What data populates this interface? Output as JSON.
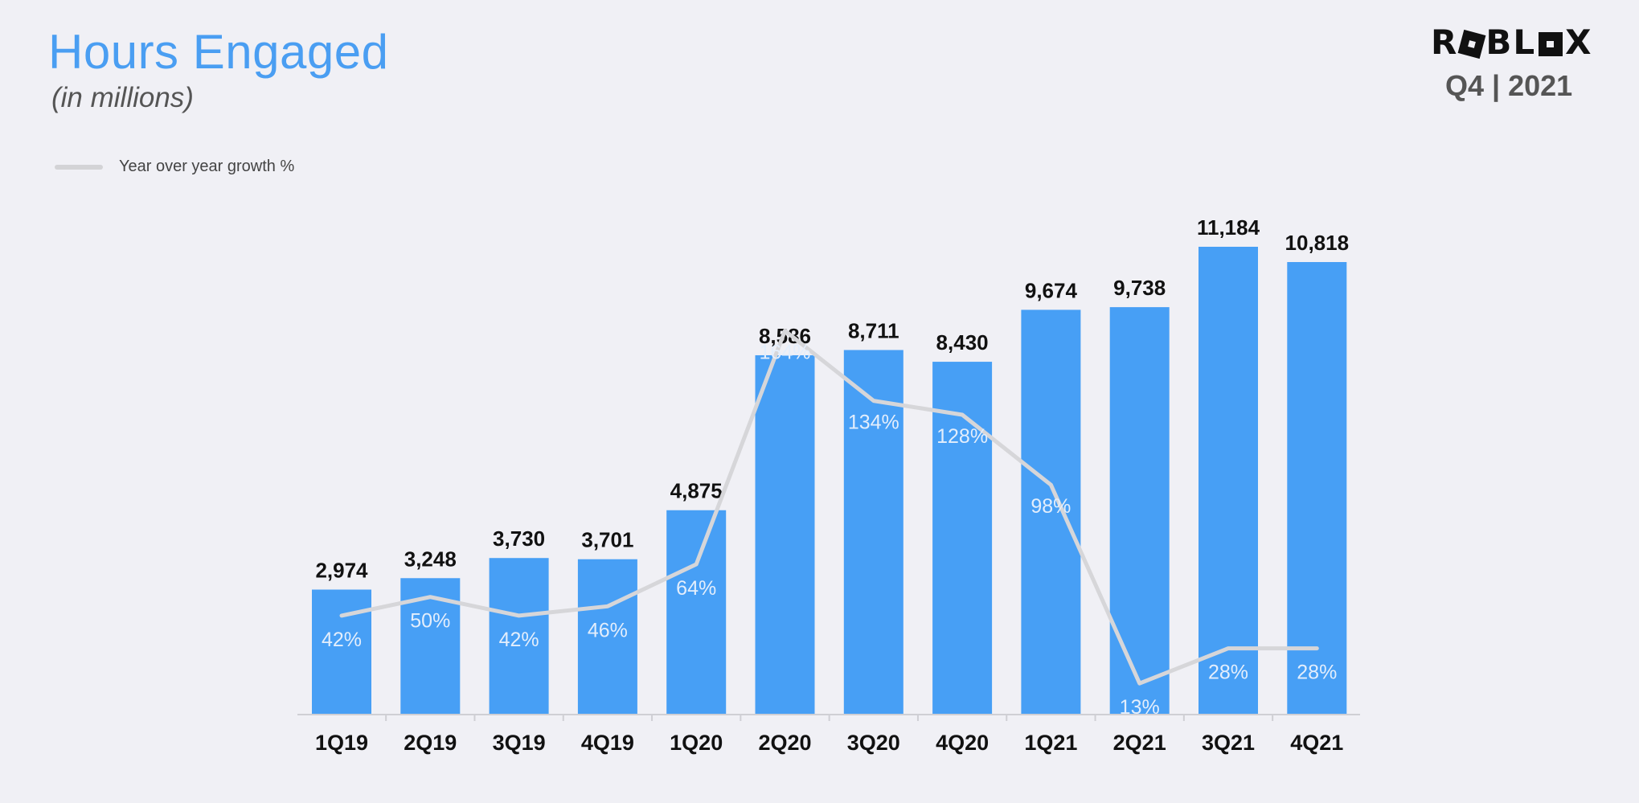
{
  "header": {
    "title": "Hours Engaged",
    "subtitle": "(in millions)",
    "brand": "ROBLOX",
    "period": "Q4 | 2021"
  },
  "colors": {
    "bar": "#479ff5",
    "line": "#d6d6d9",
    "title": "#4a9ef2",
    "value_label": "#111111",
    "growth_label": "#e3eefc"
  },
  "chart_data": {
    "type": "bar",
    "title": "Hours Engaged",
    "subtitle": "(in millions)",
    "categories": [
      "1Q19",
      "2Q19",
      "3Q19",
      "4Q19",
      "1Q20",
      "2Q20",
      "3Q20",
      "4Q20",
      "1Q21",
      "2Q21",
      "3Q21",
      "4Q21"
    ],
    "series": [
      {
        "type": "bar",
        "values": [
          2974,
          3248,
          3730,
          3701,
          4875,
          8586,
          8711,
          8430,
          9674,
          9738,
          11184,
          10818
        ],
        "labels": [
          "2,974",
          "3,248",
          "3,730",
          "3,701",
          "4,875",
          "8,586",
          "8,711",
          "8,430",
          "9,674",
          "9,738",
          "11,184",
          "10,818"
        ]
      },
      {
        "name": "Year over year growth %",
        "type": "line",
        "values": [
          42,
          50,
          42,
          46,
          64,
          164,
          134,
          128,
          98,
          13,
          28,
          28
        ],
        "labels": [
          "42%",
          "50%",
          "42%",
          "46%",
          "64%",
          "164%",
          "134%",
          "128%",
          "98%",
          "13%",
          "28%",
          "28%"
        ]
      }
    ],
    "legend": {
      "label": "Year over year growth %",
      "position": "top-left"
    },
    "bar_ylim": [
      0,
      11184
    ],
    "line_ylim": [
      0,
      275
    ],
    "grid": false
  }
}
